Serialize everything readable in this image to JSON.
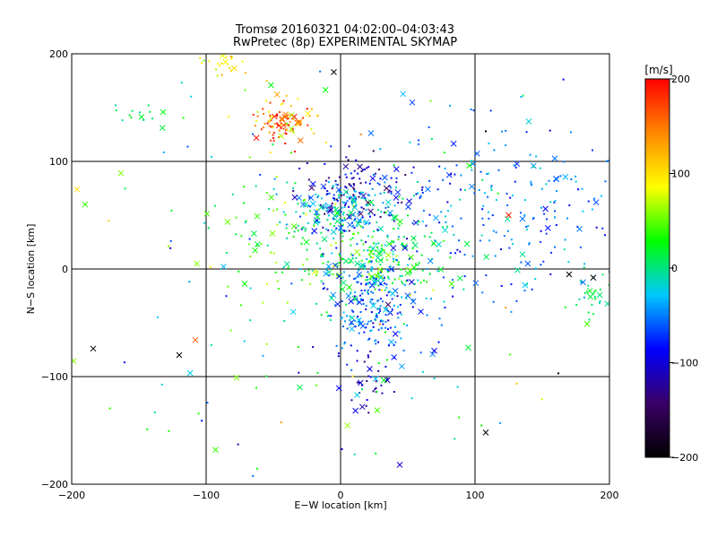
{
  "chart_data": {
    "type": "scatter",
    "title": "Tromsø 20160321 04:02:00–04:03:43",
    "subtitle": "RwPretec (8p) EXPERIMENTAL SKYMAP",
    "xlabel": "E−W location [km]",
    "ylabel": "N−S location [km]",
    "xlim": [
      -200,
      200
    ],
    "ylim": [
      -200,
      200
    ],
    "x_ticks": [
      -200,
      -100,
      0,
      100,
      200
    ],
    "y_ticks": [
      -200,
      -100,
      0,
      100,
      200
    ],
    "x_tick_labels": [
      "−200",
      "−100",
      "0",
      "100",
      "200"
    ],
    "y_tick_labels": [
      "−200",
      "−100",
      "0",
      "100",
      "200"
    ],
    "grid": true,
    "marker_types": [
      "dot",
      "cross"
    ],
    "colorbar": {
      "label": "[m/s]",
      "range": [
        -200,
        200
      ],
      "ticks": [
        200,
        100,
        0,
        -100,
        -200
      ],
      "tick_labels": [
        "200",
        "100",
        "0",
        "−100",
        "−200"
      ],
      "colormap": [
        "#000000",
        "#3a0066",
        "#0000ff",
        "#00c8ff",
        "#00ff00",
        "#ffff00",
        "#ff8800",
        "#ff0000"
      ]
    },
    "clusters": [
      {
        "name_hint": "cluster-red-north",
        "center": [
          -43,
          135
        ],
        "spread": [
          10,
          8
        ],
        "count": 70,
        "value_mean": 165,
        "value_sd": 25
      },
      {
        "name_hint": "cluster-orange-north",
        "center": [
          -40,
          142
        ],
        "spread": [
          14,
          12
        ],
        "count": 40,
        "value_mean": 95,
        "value_sd": 25
      },
      {
        "name_hint": "cluster-blue-center",
        "center": [
          15,
          75
        ],
        "spread": [
          20,
          18
        ],
        "count": 120,
        "value_mean": -110,
        "value_sd": 25
      },
      {
        "name_hint": "cluster-cyan-center",
        "center": [
          0,
          55
        ],
        "spread": [
          20,
          15
        ],
        "count": 160,
        "value_mean": -45,
        "value_sd": 25
      },
      {
        "name_hint": "cluster-green-center",
        "center": [
          30,
          10
        ],
        "spread": [
          25,
          20
        ],
        "count": 220,
        "value_mean": 15,
        "value_sd": 25
      },
      {
        "name_hint": "cluster-cyan-south",
        "center": [
          25,
          -35
        ],
        "spread": [
          20,
          25
        ],
        "count": 220,
        "value_mean": -55,
        "value_sd": 25
      },
      {
        "name_hint": "cluster-blue-south",
        "center": [
          20,
          -105
        ],
        "spread": [
          8,
          15
        ],
        "count": 35,
        "value_mean": -115,
        "value_sd": 15
      },
      {
        "name_hint": "cluster-cyan-east",
        "center": [
          120,
          60
        ],
        "spread": [
          45,
          40
        ],
        "count": 240,
        "value_mean": -55,
        "value_sd": 25
      },
      {
        "name_hint": "cluster-green-west",
        "center": [
          -40,
          30
        ],
        "spread": [
          25,
          30
        ],
        "count": 90,
        "value_mean": 25,
        "value_sd": 35
      },
      {
        "name_hint": "cluster-green-northwest",
        "center": [
          -150,
          145
        ],
        "spread": [
          12,
          6
        ],
        "count": 14,
        "value_mean": 10,
        "value_sd": 10
      },
      {
        "name_hint": "cluster-yellow-topleft",
        "center": [
          -90,
          190
        ],
        "spread": [
          10,
          6
        ],
        "count": 25,
        "value_mean": 100,
        "value_sd": 15
      },
      {
        "name_hint": "cluster-green-east-edge",
        "center": [
          190,
          -25
        ],
        "spread": [
          8,
          12
        ],
        "count": 30,
        "value_mean": 10,
        "value_sd": 12
      },
      {
        "name_hint": "cluster-sparse-background",
        "center": [
          0,
          0
        ],
        "spread": [
          100,
          100
        ],
        "count": 180,
        "value_mean": 0,
        "value_sd": 55
      }
    ],
    "points": [
      {
        "x": -184,
        "y": -74,
        "v": -200,
        "m": "cross"
      },
      {
        "x": -120,
        "y": -80,
        "v": -200,
        "m": "cross"
      },
      {
        "x": -108,
        "y": -66,
        "v": 160,
        "m": "cross"
      },
      {
        "x": 108,
        "y": -152,
        "v": -200,
        "m": "cross"
      },
      {
        "x": 162,
        "y": -97,
        "v": -200,
        "m": "dot"
      },
      {
        "x": -93,
        "y": -168,
        "v": 40,
        "m": "cross"
      },
      {
        "x": -196,
        "y": 74,
        "v": 100,
        "m": "cross"
      },
      {
        "x": -190,
        "y": 60,
        "v": 40,
        "m": "cross"
      },
      {
        "x": -107,
        "y": 5,
        "v": 60,
        "m": "cross"
      },
      {
        "x": 170,
        "y": -5,
        "v": -200,
        "m": "cross"
      },
      {
        "x": 188,
        "y": -8,
        "v": -200,
        "m": "cross"
      },
      {
        "x": -5,
        "y": 183,
        "v": -200,
        "m": "cross"
      },
      {
        "x": 125,
        "y": 50,
        "v": 190,
        "m": "cross"
      },
      {
        "x": 44,
        "y": -182,
        "v": -100,
        "m": "cross"
      },
      {
        "x": 108,
        "y": 128,
        "v": -200,
        "m": "dot"
      }
    ]
  }
}
